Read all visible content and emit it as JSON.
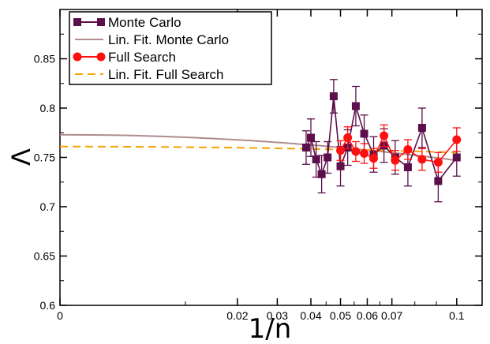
{
  "chart_data": {
    "type": "scatter",
    "xlabel": "1/n",
    "ylabel": "Λ",
    "xlim": [
      0,
      0.111
    ],
    "ylim": [
      0.6,
      0.9
    ],
    "x_scale": "reciprocal",
    "x_ticks": [
      0,
      0.02,
      0.03,
      0.04,
      0.05,
      0.06,
      0.07,
      0.1
    ],
    "x_tick_labels": [
      "0",
      "0.02",
      "0.03",
      "0.04",
      "0.05",
      "0.06",
      "0.07",
      "0.1"
    ],
    "y_ticks": [
      0.6,
      0.65,
      0.7,
      0.75,
      0.8,
      0.85
    ],
    "y_tick_labels": [
      "0.6",
      "0.65",
      "0.7",
      "0.75",
      "0.8",
      "0.85"
    ],
    "legend_position": "top-left",
    "series": [
      {
        "name": "Monte Carlo",
        "color": "#5c0f4a",
        "marker": "square",
        "x": [
          0.0385,
          0.04,
          0.0417,
          0.0435,
          0.0455,
          0.0476,
          0.05,
          0.0526,
          0.0556,
          0.0588,
          0.0625,
          0.0667,
          0.0714,
          0.0769,
          0.0833,
          0.0909,
          0.1
        ],
        "y": [
          0.76,
          0.77,
          0.748,
          0.733,
          0.75,
          0.812,
          0.741,
          0.76,
          0.802,
          0.774,
          0.753,
          0.762,
          0.75,
          0.74,
          0.78,
          0.726,
          0.75
        ],
        "err": [
          0.017,
          0.019,
          0.018,
          0.019,
          0.016,
          0.017,
          0.02,
          0.018,
          0.02,
          0.019,
          0.018,
          0.017,
          0.017,
          0.019,
          0.02,
          0.021,
          0.019
        ]
      },
      {
        "name": "Lin. Fit. Monte Carlo",
        "color": "#b08c8c",
        "style": "solid",
        "x": [
          0,
          0.1
        ],
        "y": [
          0.773,
          0.747
        ]
      },
      {
        "name": "Full Search",
        "color": "#ff1010",
        "marker": "circle",
        "x": [
          0.05,
          0.0526,
          0.0556,
          0.0588,
          0.0625,
          0.0667,
          0.0714,
          0.0769,
          0.0833,
          0.0909,
          0.1
        ],
        "y": [
          0.757,
          0.77,
          0.756,
          0.754,
          0.749,
          0.772,
          0.747,
          0.758,
          0.748,
          0.745,
          0.768
        ],
        "err": [
          0.01,
          0.011,
          0.01,
          0.01,
          0.01,
          0.011,
          0.01,
          0.01,
          0.011,
          0.01,
          0.012
        ]
      },
      {
        "name": "Lin. Fit. Full Search",
        "color": "#f5a300",
        "style": "dashed",
        "x": [
          0,
          0.1
        ],
        "y": [
          0.761,
          0.755
        ]
      }
    ]
  }
}
